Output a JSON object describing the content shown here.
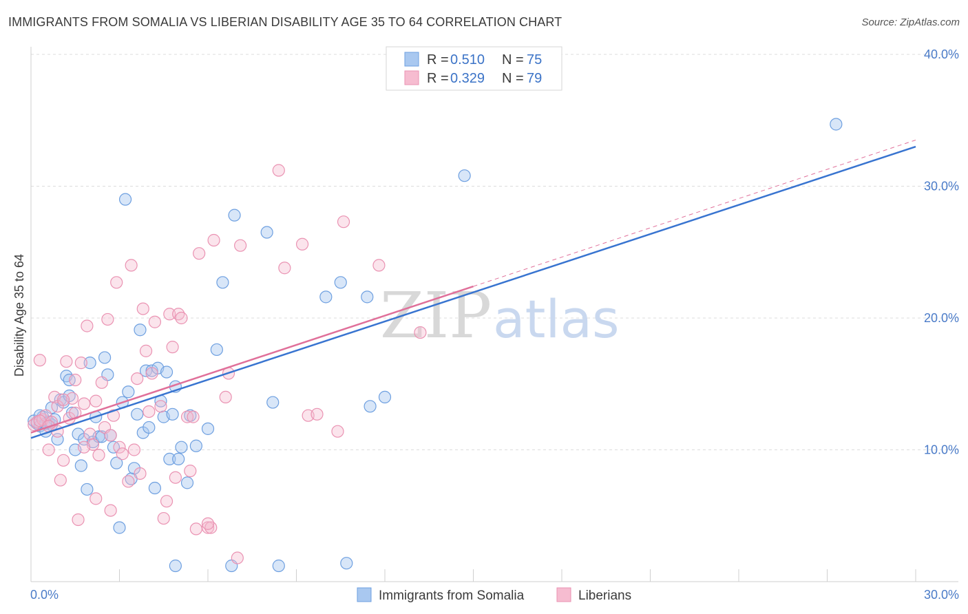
{
  "title": "IMMIGRANTS FROM SOMALIA VS LIBERIAN DISABILITY AGE 35 TO 64 CORRELATION CHART",
  "source": "Source: ZipAtlas.com",
  "watermark": {
    "zip": "ZIP",
    "atlas": "atlas"
  },
  "legend": {
    "rows": [
      {
        "r_label": "R =",
        "r_value": "0.510",
        "n_label": "N =",
        "n_value": "75"
      },
      {
        "r_label": "R =",
        "r_value": "0.329",
        "n_label": "N =",
        "n_value": "79"
      }
    ]
  },
  "bottom_legend": [
    "Immigrants from Somalia",
    "Liberians"
  ],
  "colors": {
    "somalia_fill": "#a9c8f0",
    "somalia_stroke": "#6d9fe0",
    "somalia_line": "#3874d0",
    "liberian_fill": "#f6bcd0",
    "liberian_stroke": "#ea92b2",
    "liberian_line": "#e0709a",
    "grid": "#dcdcdc",
    "tick_text": "#4a7bc8"
  },
  "chart_data": {
    "type": "scatter",
    "title": "IMMIGRANTS FROM SOMALIA VS LIBERIAN DISABILITY AGE 35 TO 64 CORRELATION CHART",
    "xlabel": "",
    "ylabel": "Disability Age 35 to 64",
    "xlim": [
      0,
      30
    ],
    "ylim": [
      0,
      40
    ],
    "x_tick_labels": [
      "0.0%",
      "30.0%"
    ],
    "y_ticks": [
      10,
      20,
      30,
      40
    ],
    "y_tick_labels": [
      "10.0%",
      "20.0%",
      "30.0%",
      "40.0%"
    ],
    "grid": true,
    "legend_position": "top-center",
    "series": [
      {
        "name": "Immigrants from Somalia",
        "r": 0.51,
        "n": 75,
        "trend": {
          "x": [
            0,
            30
          ],
          "y": [
            10.9,
            33.0
          ]
        },
        "points": [
          [
            0.1,
            12.2
          ],
          [
            0.2,
            12.0
          ],
          [
            0.3,
            11.8
          ],
          [
            0.4,
            12.5
          ],
          [
            0.5,
            11.4
          ],
          [
            0.6,
            12.1
          ],
          [
            0.7,
            11.9
          ],
          [
            0.8,
            12.3
          ],
          [
            0.9,
            10.8
          ],
          [
            1.0,
            13.8
          ],
          [
            1.1,
            13.6
          ],
          [
            1.2,
            15.6
          ],
          [
            1.3,
            15.3
          ],
          [
            1.4,
            12.8
          ],
          [
            1.5,
            10.0
          ],
          [
            1.6,
            11.2
          ],
          [
            1.7,
            8.8
          ],
          [
            1.8,
            10.8
          ],
          [
            1.9,
            7.0
          ],
          [
            2.0,
            16.6
          ],
          [
            2.1,
            10.6
          ],
          [
            2.2,
            12.5
          ],
          [
            2.3,
            11.0
          ],
          [
            2.4,
            11.0
          ],
          [
            2.5,
            17.0
          ],
          [
            2.6,
            15.7
          ],
          [
            2.7,
            11.1
          ],
          [
            2.8,
            10.2
          ],
          [
            2.9,
            9.0
          ],
          [
            3.0,
            4.1
          ],
          [
            3.1,
            13.6
          ],
          [
            3.2,
            29.0
          ],
          [
            3.3,
            14.4
          ],
          [
            3.4,
            7.8
          ],
          [
            3.5,
            8.6
          ],
          [
            3.6,
            12.7
          ],
          [
            3.7,
            19.1
          ],
          [
            3.8,
            11.3
          ],
          [
            3.9,
            16.0
          ],
          [
            4.0,
            11.7
          ],
          [
            4.1,
            16.0
          ],
          [
            4.2,
            7.1
          ],
          [
            4.3,
            16.2
          ],
          [
            4.4,
            13.7
          ],
          [
            4.5,
            12.5
          ],
          [
            4.6,
            15.9
          ],
          [
            4.7,
            9.3
          ],
          [
            4.8,
            12.7
          ],
          [
            4.9,
            14.8
          ],
          [
            5.0,
            9.3
          ],
          [
            5.1,
            10.2
          ],
          [
            5.3,
            7.5
          ],
          [
            5.4,
            12.6
          ],
          [
            5.6,
            10.3
          ],
          [
            6.0,
            11.6
          ],
          [
            6.3,
            17.6
          ],
          [
            6.9,
            27.8
          ],
          [
            8.0,
            26.5
          ],
          [
            8.2,
            13.6
          ],
          [
            10.0,
            21.6
          ],
          [
            10.5,
            22.7
          ],
          [
            11.4,
            21.6
          ],
          [
            11.5,
            13.3
          ],
          [
            12.0,
            14.0
          ],
          [
            14.7,
            30.8
          ],
          [
            27.3,
            34.7
          ],
          [
            6.5,
            22.7
          ],
          [
            4.9,
            1.2
          ],
          [
            6.8,
            1.2
          ],
          [
            8.4,
            1.2
          ],
          [
            10.7,
            1.4
          ],
          [
            0.3,
            12.6
          ],
          [
            0.5,
            12.0
          ],
          [
            0.7,
            13.2
          ],
          [
            1.3,
            14.1
          ]
        ]
      },
      {
        "name": "Liberians",
        "r": 0.329,
        "n": 79,
        "trend_solid": {
          "x": [
            0,
            15
          ],
          "y": [
            11.3,
            22.4
          ]
        },
        "trend_dashed": {
          "x": [
            15,
            30
          ],
          "y": [
            22.4,
            33.5
          ]
        },
        "points": [
          [
            0.1,
            11.9
          ],
          [
            0.2,
            12.1
          ],
          [
            0.3,
            16.8
          ],
          [
            0.4,
            12.3
          ],
          [
            0.5,
            12.6
          ],
          [
            0.6,
            10.0
          ],
          [
            0.7,
            12.1
          ],
          [
            0.8,
            14.0
          ],
          [
            0.9,
            13.3
          ],
          [
            1.0,
            7.7
          ],
          [
            1.1,
            9.2
          ],
          [
            1.2,
            16.7
          ],
          [
            1.3,
            12.4
          ],
          [
            1.4,
            13.9
          ],
          [
            1.5,
            15.3
          ],
          [
            1.6,
            4.7
          ],
          [
            1.7,
            16.6
          ],
          [
            1.8,
            13.5
          ],
          [
            1.9,
            19.4
          ],
          [
            2.0,
            11.2
          ],
          [
            2.1,
            10.4
          ],
          [
            2.2,
            6.3
          ],
          [
            2.3,
            9.6
          ],
          [
            2.4,
            15.1
          ],
          [
            2.5,
            11.7
          ],
          [
            2.6,
            19.9
          ],
          [
            2.7,
            5.4
          ],
          [
            2.8,
            12.6
          ],
          [
            2.9,
            22.7
          ],
          [
            3.0,
            10.2
          ],
          [
            3.1,
            9.7
          ],
          [
            3.3,
            7.6
          ],
          [
            3.4,
            24.0
          ],
          [
            3.5,
            10.0
          ],
          [
            3.6,
            15.4
          ],
          [
            3.7,
            8.2
          ],
          [
            3.8,
            20.7
          ],
          [
            3.9,
            17.5
          ],
          [
            4.0,
            12.9
          ],
          [
            4.2,
            19.7
          ],
          [
            4.4,
            13.3
          ],
          [
            4.5,
            4.8
          ],
          [
            4.6,
            6.1
          ],
          [
            4.7,
            20.3
          ],
          [
            4.8,
            17.8
          ],
          [
            4.9,
            7.9
          ],
          [
            5.0,
            20.3
          ],
          [
            5.1,
            20.0
          ],
          [
            5.3,
            12.5
          ],
          [
            5.4,
            8.4
          ],
          [
            5.5,
            12.5
          ],
          [
            5.6,
            4.0
          ],
          [
            6.0,
            4.1
          ],
          [
            6.1,
            4.1
          ],
          [
            6.6,
            14.0
          ],
          [
            6.7,
            15.8
          ],
          [
            7.0,
            1.8
          ],
          [
            7.1,
            25.5
          ],
          [
            8.4,
            31.2
          ],
          [
            9.4,
            12.6
          ],
          [
            8.6,
            23.8
          ],
          [
            9.7,
            12.7
          ],
          [
            10.4,
            11.4
          ],
          [
            10.6,
            27.3
          ],
          [
            11.8,
            24.0
          ],
          [
            13.2,
            18.9
          ],
          [
            5.7,
            24.9
          ],
          [
            6.2,
            25.9
          ],
          [
            9.2,
            25.6
          ],
          [
            6.0,
            4.4
          ],
          [
            0.3,
            12.2
          ],
          [
            0.6,
            11.8
          ],
          [
            0.9,
            11.4
          ],
          [
            1.5,
            12.8
          ],
          [
            2.2,
            13.7
          ],
          [
            2.7,
            11.1
          ],
          [
            1.8,
            10.2
          ],
          [
            1.1,
            13.8
          ],
          [
            4.1,
            15.8
          ]
        ]
      }
    ]
  }
}
